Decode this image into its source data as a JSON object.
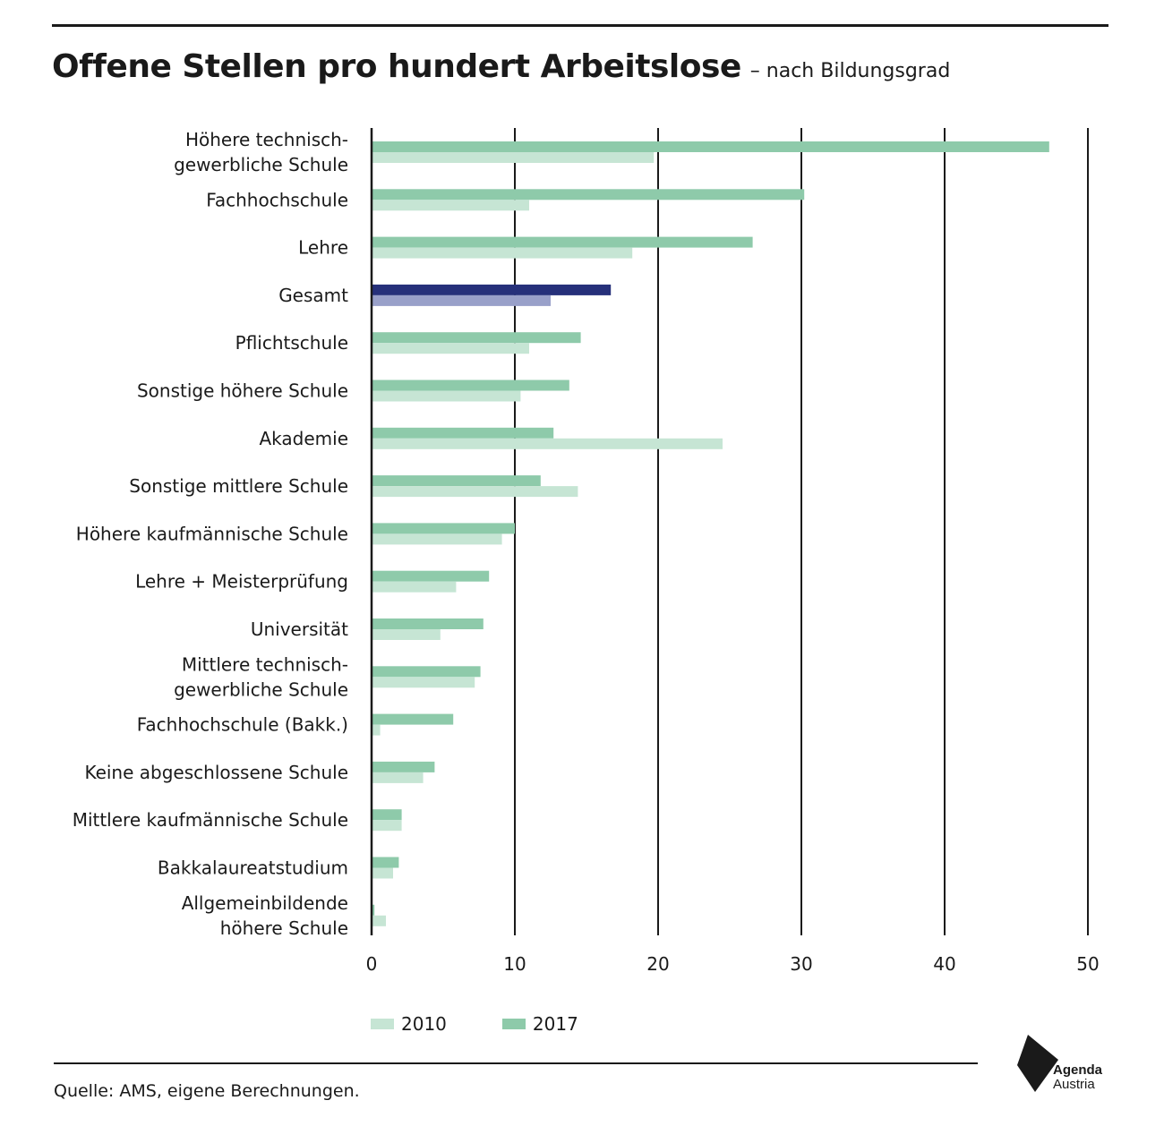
{
  "header": {
    "title": "Offene Stellen pro hundert Arbeitslose",
    "subtitle": "– nach Bildungsgrad"
  },
  "legend": {
    "label_2010": "2010",
    "label_2017": "2017"
  },
  "footer": {
    "source": "Quelle: AMS, eigene Berechnungen.",
    "logo_line1": "Agenda",
    "logo_line2": "Austria"
  },
  "colors": {
    "bar_2017": "#8ecaaa",
    "bar_2010": "#c6e5d4",
    "highlight_2017": "#26307a",
    "highlight_2010": "#99a0c9",
    "axis": "#1a1a1a"
  },
  "chart_data": {
    "type": "bar",
    "orientation": "horizontal",
    "title": "Offene Stellen pro hundert Arbeitslose",
    "subtitle": "– nach Bildungsgrad",
    "xlim": [
      0,
      50
    ],
    "xticks": [
      0,
      10,
      20,
      30,
      40,
      50
    ],
    "grid": true,
    "legend_position": "bottom",
    "highlight_category": "Gesamt",
    "categories": [
      [
        "Höhere technisch-",
        "gewerbliche Schule"
      ],
      [
        "Fachhochschule"
      ],
      [
        "Lehre"
      ],
      [
        "Gesamt"
      ],
      [
        "Pflichtschule"
      ],
      [
        "Sonstige höhere Schule"
      ],
      [
        "Akademie"
      ],
      [
        "Sonstige mittlere Schule"
      ],
      [
        "Höhere kaufmännische Schule"
      ],
      [
        "Lehre + Meisterprüfung"
      ],
      [
        "Universität"
      ],
      [
        "Mittlere technisch-",
        "gewerbliche Schule"
      ],
      [
        "Fachhochschule (Bakk.)"
      ],
      [
        "Keine abgeschlossene Schule"
      ],
      [
        "Mittlere kaufmännische Schule"
      ],
      [
        "Bakkalaureatstudium"
      ],
      [
        "Allgemeinbildende",
        "höhere Schule"
      ]
    ],
    "series": [
      {
        "name": "2017",
        "values": [
          47.3,
          30.2,
          26.6,
          16.7,
          14.6,
          13.8,
          12.7,
          11.8,
          10.0,
          8.2,
          7.8,
          7.6,
          5.7,
          4.4,
          2.1,
          1.9,
          0.2
        ]
      },
      {
        "name": "2010",
        "values": [
          19.7,
          11.0,
          18.2,
          12.5,
          11.0,
          10.4,
          24.5,
          14.4,
          9.1,
          5.9,
          4.8,
          7.2,
          0.6,
          3.6,
          2.1,
          1.5,
          1.0
        ]
      }
    ]
  }
}
